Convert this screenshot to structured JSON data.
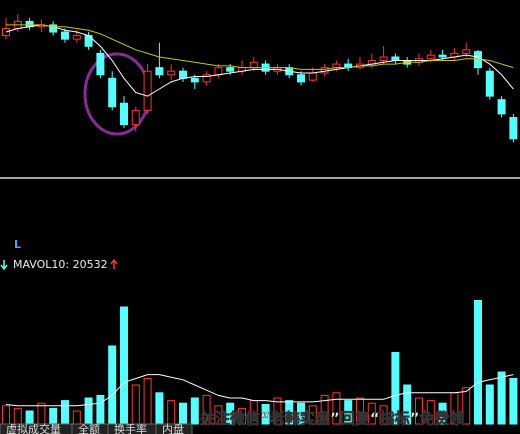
{
  "chart_data": [
    {
      "type": "candlestick",
      "open": [
        80,
        84,
        88,
        85,
        86,
        82,
        78,
        80,
        70,
        56,
        42,
        30,
        38,
        62,
        58,
        60,
        56,
        54,
        58,
        62,
        60,
        62,
        64,
        60,
        62,
        58,
        55,
        59,
        62,
        64,
        62,
        64,
        66,
        68,
        66,
        65,
        67,
        69,
        68,
        70,
        71,
        60,
        44,
        34
      ],
      "close": [
        84,
        88,
        85,
        86,
        82,
        78,
        80,
        74,
        58,
        40,
        30,
        38,
        60,
        58,
        60,
        56,
        54,
        58,
        62,
        60,
        62,
        65,
        60,
        62,
        58,
        54,
        59,
        62,
        64,
        62,
        64,
        66,
        68,
        66,
        64,
        67,
        69,
        68,
        70,
        72,
        62,
        46,
        36,
        22
      ],
      "high": [
        90,
        92,
        90,
        89,
        88,
        84,
        83,
        82,
        72,
        60,
        46,
        40,
        64,
        76,
        64,
        62,
        58,
        60,
        64,
        64,
        66,
        68,
        66,
        64,
        64,
        60,
        62,
        64,
        66,
        67,
        68,
        70,
        74,
        70,
        68,
        70,
        72,
        72,
        73,
        76,
        72,
        62,
        46,
        36
      ],
      "low": [
        78,
        82,
        83,
        82,
        80,
        76,
        76,
        72,
        56,
        38,
        28,
        26,
        36,
        56,
        55,
        54,
        50,
        52,
        56,
        58,
        58,
        60,
        58,
        58,
        56,
        52,
        54,
        57,
        60,
        60,
        61,
        62,
        64,
        64,
        62,
        63,
        65,
        66,
        66,
        68,
        58,
        44,
        34,
        20
      ],
      "up_color": "#ff3232",
      "down_color": "#54ffff",
      "lines": [
        {
          "color": "#ffffff",
          "values": [
            82,
            84,
            85,
            86,
            85,
            83,
            82,
            80,
            74,
            66,
            56,
            48,
            46,
            50,
            54,
            56,
            57,
            57,
            58,
            59,
            60,
            61,
            61,
            61,
            60,
            59,
            59,
            60,
            61,
            62,
            63,
            64,
            65,
            66,
            66,
            66,
            66,
            67,
            68,
            69,
            68,
            64,
            58,
            50
          ]
        },
        {
          "color": "#c8c800",
          "values": [
            86,
            86,
            86,
            86,
            85,
            85,
            84,
            83,
            81,
            78,
            75,
            72,
            70,
            68,
            67,
            66,
            65,
            64,
            63,
            63,
            62,
            62,
            62,
            62,
            62,
            61,
            61,
            61,
            62,
            62,
            63,
            63,
            64,
            64,
            65,
            65,
            66,
            66,
            66,
            67,
            67,
            66,
            64,
            62
          ]
        }
      ],
      "ylim": [
        0,
        100
      ]
    },
    {
      "type": "volume",
      "label": "L",
      "title": "MAVOL10: 20532",
      "values": [
        14,
        12,
        10,
        16,
        12,
        18,
        10,
        20,
        22,
        60,
        90,
        30,
        35,
        24,
        18,
        16,
        20,
        22,
        14,
        16,
        12,
        18,
        15,
        20,
        18,
        16,
        14,
        22,
        24,
        18,
        20,
        16,
        14,
        55,
        30,
        20,
        18,
        16,
        24,
        28,
        95,
        30,
        40,
        35
      ],
      "lines": [
        {
          "color": "#ffffff",
          "values": [
            15,
            14,
            14,
            14,
            14,
            14,
            14,
            15,
            16,
            22,
            32,
            35,
            38,
            38,
            36,
            34,
            30,
            26,
            22,
            20,
            20,
            18,
            18,
            17,
            17,
            17,
            17,
            18,
            19,
            19,
            19,
            19,
            19,
            22,
            24,
            24,
            24,
            24,
            24,
            25,
            32,
            34,
            36,
            38
          ]
        }
      ],
      "ylim": [
        0,
        100
      ]
    }
  ],
  "tabs": [
    "虚拟成交量",
    "全额",
    "换手率",
    "内盘"
  ],
  "watermark": "关注微信“老韩实盘”回复“指标”免费领"
}
